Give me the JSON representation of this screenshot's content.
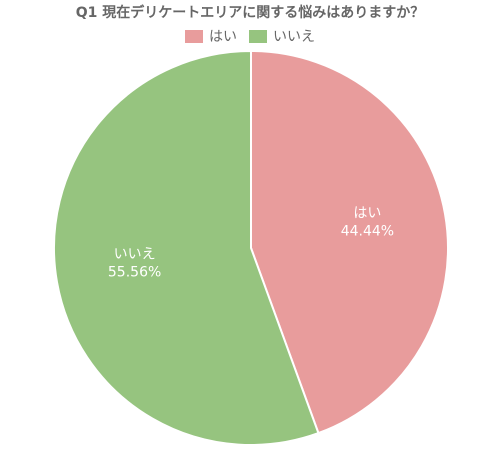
{
  "chart_data": {
    "type": "pie",
    "title": "Q1 現在デリケートエリアに関する悩みはありますか？",
    "labels": [
      "はい",
      "いいえ"
    ],
    "values": [
      44.44,
      55.56
    ],
    "value_labels": [
      "44.44%",
      "55.56%"
    ],
    "colors": [
      "#e89c9c",
      "#96c47f"
    ],
    "legend": "top"
  }
}
